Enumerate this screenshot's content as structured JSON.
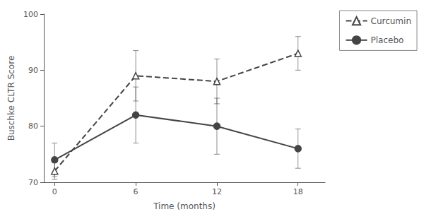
{
  "chart_data": {
    "type": "line",
    "xlabel": "Time (months)",
    "ylabel": "Buschke CLTR Score",
    "x": [
      0,
      6,
      12,
      18
    ],
    "series": [
      {
        "name": "Curcumin",
        "color": "#444444",
        "values": [
          72,
          89,
          88,
          93
        ],
        "yerr": [
          1.5,
          4.5,
          4.0,
          3.0
        ],
        "marker": "open_triangle",
        "line_style": "dashed"
      },
      {
        "name": "Placebo",
        "color": "#444444",
        "values": [
          74,
          82,
          80,
          76
        ],
        "yerr": [
          3.0,
          5.0,
          5.0,
          3.5
        ],
        "marker": "circle",
        "line_style": "solid"
      }
    ],
    "xlim": [
      -0.8,
      20.0
    ],
    "xticks": [
      0,
      6,
      12,
      18
    ],
    "ylim": [
      70,
      100
    ],
    "yticks": [
      70,
      80,
      90,
      100
    ],
    "grid": false,
    "legend": "right"
  }
}
